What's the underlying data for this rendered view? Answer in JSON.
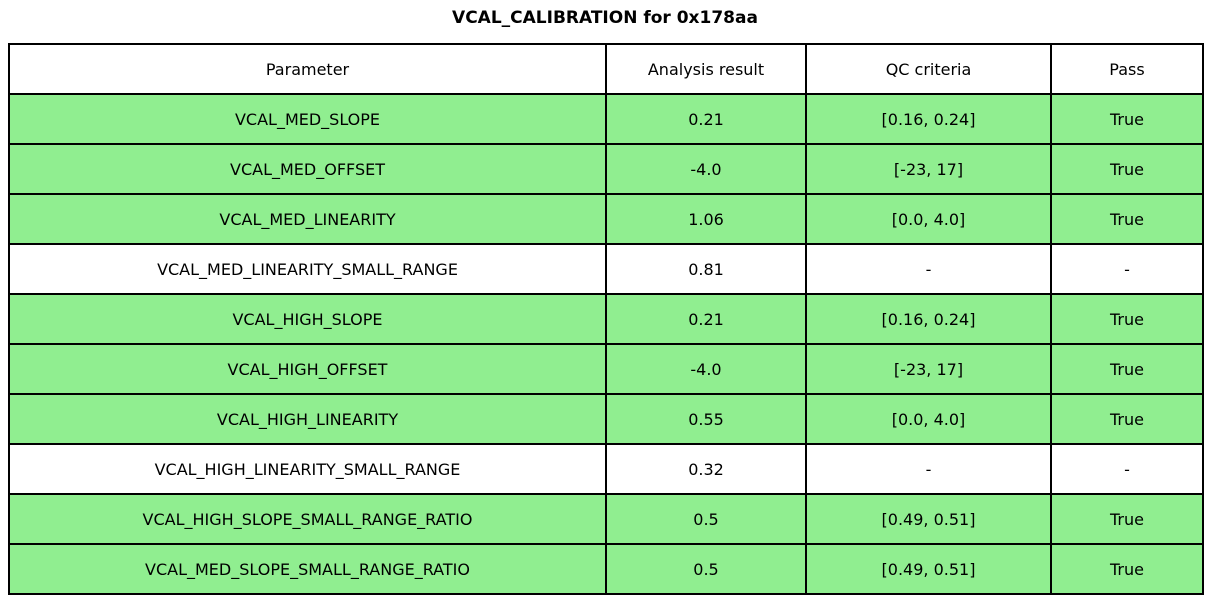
{
  "title": "VCAL_CALIBRATION for 0x178aa",
  "colors": {
    "pass_row_bg": "#90EE90",
    "neutral_row_bg": "#FFFFFF",
    "border": "#000000",
    "text": "#000000"
  },
  "chart_data": {
    "type": "table",
    "title": "VCAL_CALIBRATION for 0x178aa",
    "columns": [
      "Parameter",
      "Analysis result",
      "QC criteria",
      "Pass"
    ],
    "rows": [
      {
        "parameter": "VCAL_MED_SLOPE",
        "analysis_result": "0.21",
        "qc_criteria": "[0.16, 0.24]",
        "pass": "True",
        "highlighted": true
      },
      {
        "parameter": "VCAL_MED_OFFSET",
        "analysis_result": "-4.0",
        "qc_criteria": "[-23, 17]",
        "pass": "True",
        "highlighted": true
      },
      {
        "parameter": "VCAL_MED_LINEARITY",
        "analysis_result": "1.06",
        "qc_criteria": "[0.0, 4.0]",
        "pass": "True",
        "highlighted": true
      },
      {
        "parameter": "VCAL_MED_LINEARITY_SMALL_RANGE",
        "analysis_result": "0.81",
        "qc_criteria": "-",
        "pass": "-",
        "highlighted": false
      },
      {
        "parameter": "VCAL_HIGH_SLOPE",
        "analysis_result": "0.21",
        "qc_criteria": "[0.16, 0.24]",
        "pass": "True",
        "highlighted": true
      },
      {
        "parameter": "VCAL_HIGH_OFFSET",
        "analysis_result": "-4.0",
        "qc_criteria": "[-23, 17]",
        "pass": "True",
        "highlighted": true
      },
      {
        "parameter": "VCAL_HIGH_LINEARITY",
        "analysis_result": "0.55",
        "qc_criteria": "[0.0, 4.0]",
        "pass": "True",
        "highlighted": true
      },
      {
        "parameter": "VCAL_HIGH_LINEARITY_SMALL_RANGE",
        "analysis_result": "0.32",
        "qc_criteria": "-",
        "pass": "-",
        "highlighted": false
      },
      {
        "parameter": "VCAL_HIGH_SLOPE_SMALL_RANGE_RATIO",
        "analysis_result": "0.5",
        "qc_criteria": "[0.49, 0.51]",
        "pass": "True",
        "highlighted": true
      },
      {
        "parameter": "VCAL_MED_SLOPE_SMALL_RANGE_RATIO",
        "analysis_result": "0.5",
        "qc_criteria": "[0.49, 0.51]",
        "pass": "True",
        "highlighted": true
      }
    ]
  }
}
